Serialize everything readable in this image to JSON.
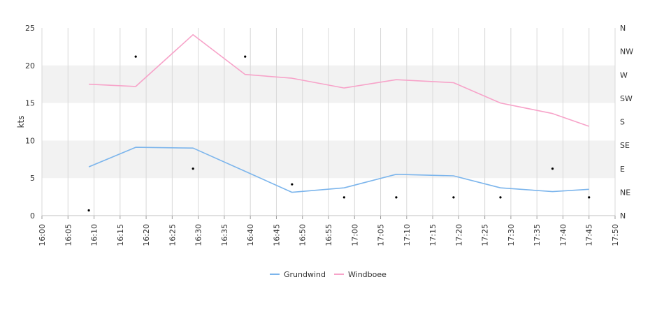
{
  "chart_data": {
    "type": "line",
    "title": "",
    "xlabel": "",
    "ylabel": "kts",
    "ylim": [
      0,
      25
    ],
    "y_ticks": [
      "0",
      "5",
      "10",
      "15",
      "20",
      "25"
    ],
    "x_ticks": [
      "16:00",
      "16:05",
      "16:10",
      "16:15",
      "16:20",
      "16:25",
      "16:30",
      "16:35",
      "16:40",
      "16:45",
      "16:50",
      "16:55",
      "17:00",
      "17:05",
      "17:10",
      "17:15",
      "17:20",
      "17:25",
      "17:30",
      "17:35",
      "17:40",
      "17:45",
      "17:50"
    ],
    "x_range": [
      "16:00",
      "17:50"
    ],
    "y2_ticks": [
      "N",
      "NE",
      "E",
      "SE",
      "S",
      "SW",
      "W",
      "NW",
      "N"
    ],
    "grid": "vertical lines and alternating horizontal bands",
    "legend_position": "bottom-center",
    "x": [
      "16:09",
      "16:18",
      "16:29",
      "16:39",
      "16:48",
      "16:58",
      "17:08",
      "17:19",
      "17:28",
      "17:38",
      "17:45"
    ],
    "series": [
      {
        "name": "Grundwind",
        "color": "#7cb5ec",
        "values": [
          6.5,
          9.1,
          9.0,
          5.9,
          3.1,
          3.7,
          5.5,
          5.3,
          3.7,
          3.2,
          3.5
        ]
      },
      {
        "name": "Windboee",
        "color": "#f7a3c9",
        "values": [
          17.5,
          17.2,
          24.1,
          18.8,
          18.3,
          17.0,
          18.1,
          17.7,
          15.0,
          13.6,
          11.9
        ]
      }
    ],
    "direction_points": [
      {
        "x": "16:09",
        "dir_deg": 10
      },
      {
        "x": "16:18",
        "dir_deg": 305
      },
      {
        "x": "16:29",
        "dir_deg": 90
      },
      {
        "x": "16:39",
        "dir_deg": 305
      },
      {
        "x": "16:48",
        "dir_deg": 60
      },
      {
        "x": "16:58",
        "dir_deg": 35
      },
      {
        "x": "17:08",
        "dir_deg": 35
      },
      {
        "x": "17:19",
        "dir_deg": 35
      },
      {
        "x": "17:28",
        "dir_deg": 35
      },
      {
        "x": "17:38",
        "dir_deg": 90
      },
      {
        "x": "17:45",
        "dir_deg": 35
      }
    ]
  }
}
